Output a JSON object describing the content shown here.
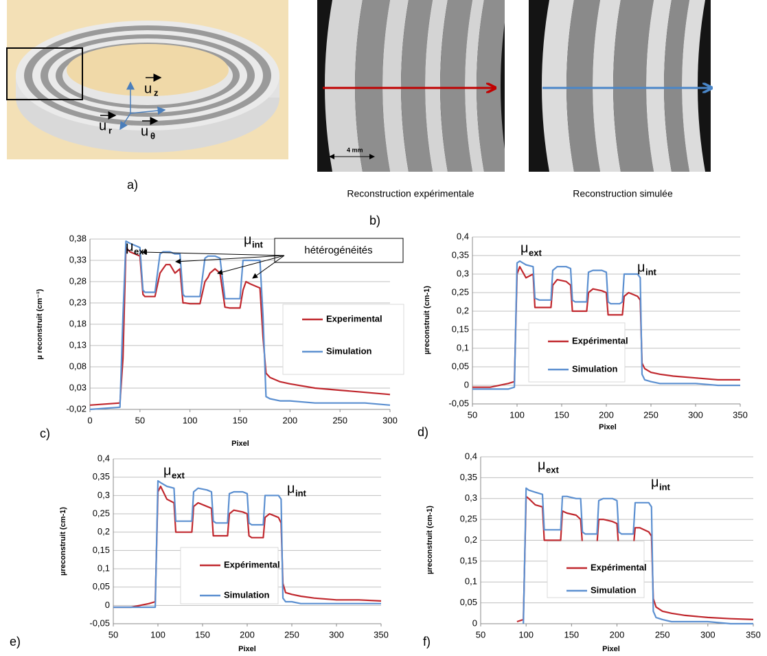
{
  "figure": {
    "panel_a": {
      "label": "a)",
      "vectors": [
        {
          "symbol": "u",
          "sub": "z"
        },
        {
          "symbol": "u",
          "sub": "r"
        },
        {
          "symbol": "u",
          "sub": "θ"
        }
      ]
    },
    "panel_b": {
      "label": "b)",
      "captions": [
        "Reconstruction expérimentale",
        "Reconstruction simulée"
      ],
      "scale_bar": "4 mm"
    }
  },
  "chart_data": [
    {
      "type": "line",
      "panel": "c)",
      "xlabel": "Pixel",
      "ylabel": "µ reconstruit (cm⁻¹)",
      "grid": true,
      "annotations": [
        {
          "text": "μ",
          "sub": "ext"
        },
        {
          "text": "μ",
          "sub": "int"
        }
      ],
      "callout": "hétérogénéités",
      "xlim": [
        0,
        300
      ],
      "xticks": [
        0,
        50,
        100,
        150,
        200,
        250,
        300
      ],
      "ylim": [
        -0.02,
        0.38
      ],
      "yticks": [
        {
          "value": -0.02,
          "label": "-0,02"
        },
        {
          "value": 0.03,
          "label": "0,03"
        },
        {
          "value": 0.08,
          "label": "0,08"
        },
        {
          "value": 0.13,
          "label": "0,13"
        },
        {
          "value": 0.18,
          "label": "0,18"
        },
        {
          "value": 0.23,
          "label": "0,23"
        },
        {
          "value": 0.28,
          "label": "0,28"
        },
        {
          "value": 0.33,
          "label": "0,33"
        },
        {
          "value": 0.38,
          "label": "0,38"
        }
      ],
      "x": [
        0,
        30,
        33,
        36,
        40,
        50,
        53,
        55,
        60,
        65,
        70,
        73,
        76,
        80,
        85,
        90,
        93,
        95,
        100,
        105,
        110,
        115,
        118,
        120,
        125,
        130,
        135,
        140,
        145,
        150,
        153,
        156,
        160,
        165,
        170,
        173,
        176,
        180,
        190,
        200,
        225,
        250,
        275,
        300
      ],
      "series": [
        {
          "name": "Experimental",
          "color": "#c0272d",
          "values": [
            -0.01,
            -0.005,
            0.1,
            0.36,
            0.35,
            0.34,
            0.25,
            0.245,
            0.245,
            0.245,
            0.3,
            0.31,
            0.32,
            0.32,
            0.3,
            0.31,
            0.23,
            0.23,
            0.228,
            0.228,
            0.228,
            0.28,
            0.29,
            0.3,
            0.31,
            0.3,
            0.22,
            0.218,
            0.218,
            0.218,
            0.26,
            0.28,
            0.275,
            0.27,
            0.265,
            0.15,
            0.065,
            0.055,
            0.045,
            0.04,
            0.03,
            0.025,
            0.02,
            0.015
          ]
        },
        {
          "name": "Simulation",
          "color": "#5b8fd0",
          "values": [
            -0.02,
            -0.015,
            0.2,
            0.375,
            0.37,
            0.36,
            0.26,
            0.255,
            0.255,
            0.255,
            0.345,
            0.35,
            0.35,
            0.35,
            0.345,
            0.345,
            0.25,
            0.245,
            0.245,
            0.245,
            0.245,
            0.335,
            0.34,
            0.34,
            0.34,
            0.335,
            0.24,
            0.24,
            0.24,
            0.24,
            0.33,
            0.33,
            0.33,
            0.33,
            0.33,
            0.2,
            0.01,
            0.005,
            0,
            0,
            -0.005,
            -0.005,
            -0.005,
            -0.01
          ]
        }
      ]
    },
    {
      "type": "line",
      "panel": "d)",
      "xlabel": "Pixel",
      "ylabel": "µreconstruit (cm-1)",
      "grid": true,
      "annotations": [
        {
          "text": "μ",
          "sub": "ext"
        },
        {
          "text": "μ",
          "sub": "int"
        }
      ],
      "xlim": [
        50,
        350
      ],
      "xticks": [
        50,
        100,
        150,
        200,
        250,
        300,
        350
      ],
      "ylim": [
        -0.05,
        0.4
      ],
      "yticks": [
        {
          "value": -0.05,
          "label": "-0,05"
        },
        0,
        {
          "value": 0.05,
          "label": "0,05"
        },
        {
          "value": 0.1,
          "label": "0,1"
        },
        {
          "value": 0.15,
          "label": "0,15"
        },
        {
          "value": 0.2,
          "label": "0,2"
        },
        {
          "value": 0.25,
          "label": "0,25"
        },
        {
          "value": 0.3,
          "label": "0,3"
        },
        {
          "value": 0.35,
          "label": "0,35"
        },
        {
          "value": 0.4,
          "label": "0,4"
        }
      ],
      "x": [
        50,
        70,
        90,
        97,
        100,
        103,
        110,
        118,
        120,
        125,
        130,
        138,
        140,
        145,
        155,
        160,
        162,
        165,
        170,
        175,
        178,
        180,
        185,
        195,
        200,
        202,
        205,
        210,
        215,
        218,
        220,
        225,
        235,
        238,
        240,
        243,
        250,
        260,
        275,
        300,
        325,
        350
      ],
      "series": [
        {
          "name": "Expérimental",
          "color": "#c0272d",
          "values": [
            -0.005,
            -0.005,
            0.005,
            0.01,
            0.3,
            0.32,
            0.29,
            0.3,
            0.21,
            0.21,
            0.21,
            0.21,
            0.27,
            0.285,
            0.28,
            0.27,
            0.2,
            0.2,
            0.2,
            0.2,
            0.2,
            0.25,
            0.26,
            0.255,
            0.25,
            0.19,
            0.19,
            0.19,
            0.19,
            0.19,
            0.24,
            0.25,
            0.24,
            0.23,
            0.06,
            0.045,
            0.035,
            0.03,
            0.025,
            0.02,
            0.015,
            0.015
          ]
        },
        {
          "name": "Simulation",
          "color": "#5b8fd0",
          "values": [
            -0.01,
            -0.01,
            -0.01,
            -0.005,
            0.33,
            0.335,
            0.325,
            0.32,
            0.235,
            0.23,
            0.23,
            0.23,
            0.31,
            0.32,
            0.32,
            0.315,
            0.23,
            0.225,
            0.225,
            0.225,
            0.225,
            0.305,
            0.31,
            0.31,
            0.305,
            0.225,
            0.22,
            0.22,
            0.22,
            0.225,
            0.3,
            0.3,
            0.3,
            0.29,
            0.03,
            0.015,
            0.01,
            0.005,
            0.005,
            0.005,
            0,
            0
          ]
        }
      ]
    },
    {
      "type": "line",
      "panel": "e)",
      "xlabel": "Pixel",
      "ylabel": "µreconstruit (cm-1)",
      "grid": true,
      "annotations": [
        {
          "text": "μ",
          "sub": "ext"
        },
        {
          "text": "μ",
          "sub": "int"
        }
      ],
      "xlim": [
        50,
        350
      ],
      "xticks": [
        50,
        100,
        150,
        200,
        250,
        300,
        350
      ],
      "ylim": [
        -0.05,
        0.4
      ],
      "yticks": [
        {
          "value": -0.05,
          "label": "-0,05"
        },
        0,
        {
          "value": 0.05,
          "label": "0,05"
        },
        {
          "value": 0.1,
          "label": "0,1"
        },
        {
          "value": 0.15,
          "label": "0,15"
        },
        {
          "value": 0.2,
          "label": "0,2"
        },
        {
          "value": 0.25,
          "label": "0,25"
        },
        {
          "value": 0.3,
          "label": "0,3"
        },
        {
          "value": 0.35,
          "label": "0,35"
        },
        {
          "value": 0.4,
          "label": "0,4"
        }
      ],
      "x": [
        50,
        70,
        90,
        97,
        100,
        103,
        110,
        118,
        120,
        125,
        130,
        138,
        140,
        145,
        155,
        160,
        162,
        165,
        170,
        175,
        178,
        180,
        185,
        195,
        200,
        202,
        205,
        210,
        215,
        218,
        220,
        225,
        235,
        238,
        240,
        243,
        250,
        260,
        275,
        300,
        325,
        350
      ],
      "series": [
        {
          "name": "Expérimental",
          "color": "#c0272d",
          "values": [
            -0.005,
            -0.005,
            0.005,
            0.01,
            0.31,
            0.325,
            0.29,
            0.28,
            0.2,
            0.2,
            0.2,
            0.2,
            0.27,
            0.28,
            0.27,
            0.265,
            0.19,
            0.19,
            0.19,
            0.19,
            0.19,
            0.25,
            0.26,
            0.255,
            0.25,
            0.19,
            0.185,
            0.185,
            0.185,
            0.185,
            0.24,
            0.25,
            0.24,
            0.225,
            0.06,
            0.035,
            0.03,
            0.025,
            0.02,
            0.015,
            0.015,
            0.012
          ]
        },
        {
          "name": "Simulation",
          "color": "#5b8fd0",
          "values": [
            -0.005,
            -0.005,
            -0.005,
            -0.005,
            0.34,
            0.335,
            0.325,
            0.32,
            0.23,
            0.23,
            0.23,
            0.23,
            0.31,
            0.32,
            0.315,
            0.31,
            0.23,
            0.225,
            0.225,
            0.225,
            0.225,
            0.305,
            0.31,
            0.31,
            0.305,
            0.225,
            0.22,
            0.22,
            0.22,
            0.22,
            0.3,
            0.3,
            0.3,
            0.29,
            0.02,
            0.01,
            0.01,
            0.005,
            0.005,
            0.005,
            0.005,
            0.005
          ]
        }
      ]
    },
    {
      "type": "line",
      "panel": "f)",
      "xlabel": "Pixel",
      "ylabel": "µreconstruit (cm-1)",
      "grid": true,
      "annotations": [
        {
          "text": "μ",
          "sub": "ext"
        },
        {
          "text": "μ",
          "sub": "int"
        }
      ],
      "xlim": [
        50,
        350
      ],
      "xticks": [
        50,
        100,
        150,
        200,
        250,
        300,
        350
      ],
      "ylim": [
        0,
        0.4
      ],
      "yticks": [
        0,
        {
          "value": 0.05,
          "label": "0,05"
        },
        {
          "value": 0.1,
          "label": "0,1"
        },
        {
          "value": 0.15,
          "label": "0,15"
        },
        {
          "value": 0.2,
          "label": "0,2"
        },
        {
          "value": 0.25,
          "label": "0,25"
        },
        {
          "value": 0.3,
          "label": "0,3"
        },
        {
          "value": 0.35,
          "label": "0,35"
        },
        {
          "value": 0.4,
          "label": "0,4"
        }
      ],
      "x": [
        50,
        70,
        90,
        97,
        100,
        103,
        110,
        118,
        120,
        125,
        130,
        138,
        140,
        145,
        155,
        160,
        162,
        165,
        170,
        175,
        178,
        180,
        185,
        195,
        200,
        202,
        205,
        210,
        215,
        218,
        220,
        225,
        235,
        238,
        240,
        243,
        250,
        260,
        275,
        300,
        325,
        350
      ],
      "series": [
        {
          "name": "Expérimental",
          "color": "#c0272d",
          "values": [
            null,
            null,
            0.005,
            0.01,
            0.305,
            0.3,
            0.285,
            0.28,
            0.2,
            0.2,
            0.2,
            0.2,
            0.27,
            0.265,
            0.26,
            0.25,
            0.19,
            0.19,
            0.19,
            0.19,
            0.19,
            0.25,
            0.25,
            0.245,
            0.24,
            0.18,
            0.18,
            0.18,
            0.18,
            0.18,
            0.23,
            0.23,
            0.22,
            0.21,
            0.06,
            0.04,
            0.03,
            0.025,
            0.02,
            0.015,
            0.012,
            0.01
          ]
        },
        {
          "name": "Simulation",
          "color": "#5b8fd0",
          "values": [
            null,
            null,
            null,
            0,
            0.325,
            0.32,
            0.315,
            0.31,
            0.225,
            0.225,
            0.225,
            0.225,
            0.305,
            0.305,
            0.3,
            0.3,
            0.22,
            0.215,
            0.215,
            0.215,
            0.215,
            0.295,
            0.3,
            0.3,
            0.295,
            0.22,
            0.215,
            0.215,
            0.215,
            0.215,
            0.29,
            0.29,
            0.29,
            0.28,
            0.03,
            0.015,
            0.01,
            0.005,
            0.005,
            0.005,
            0,
            0
          ]
        }
      ]
    }
  ]
}
